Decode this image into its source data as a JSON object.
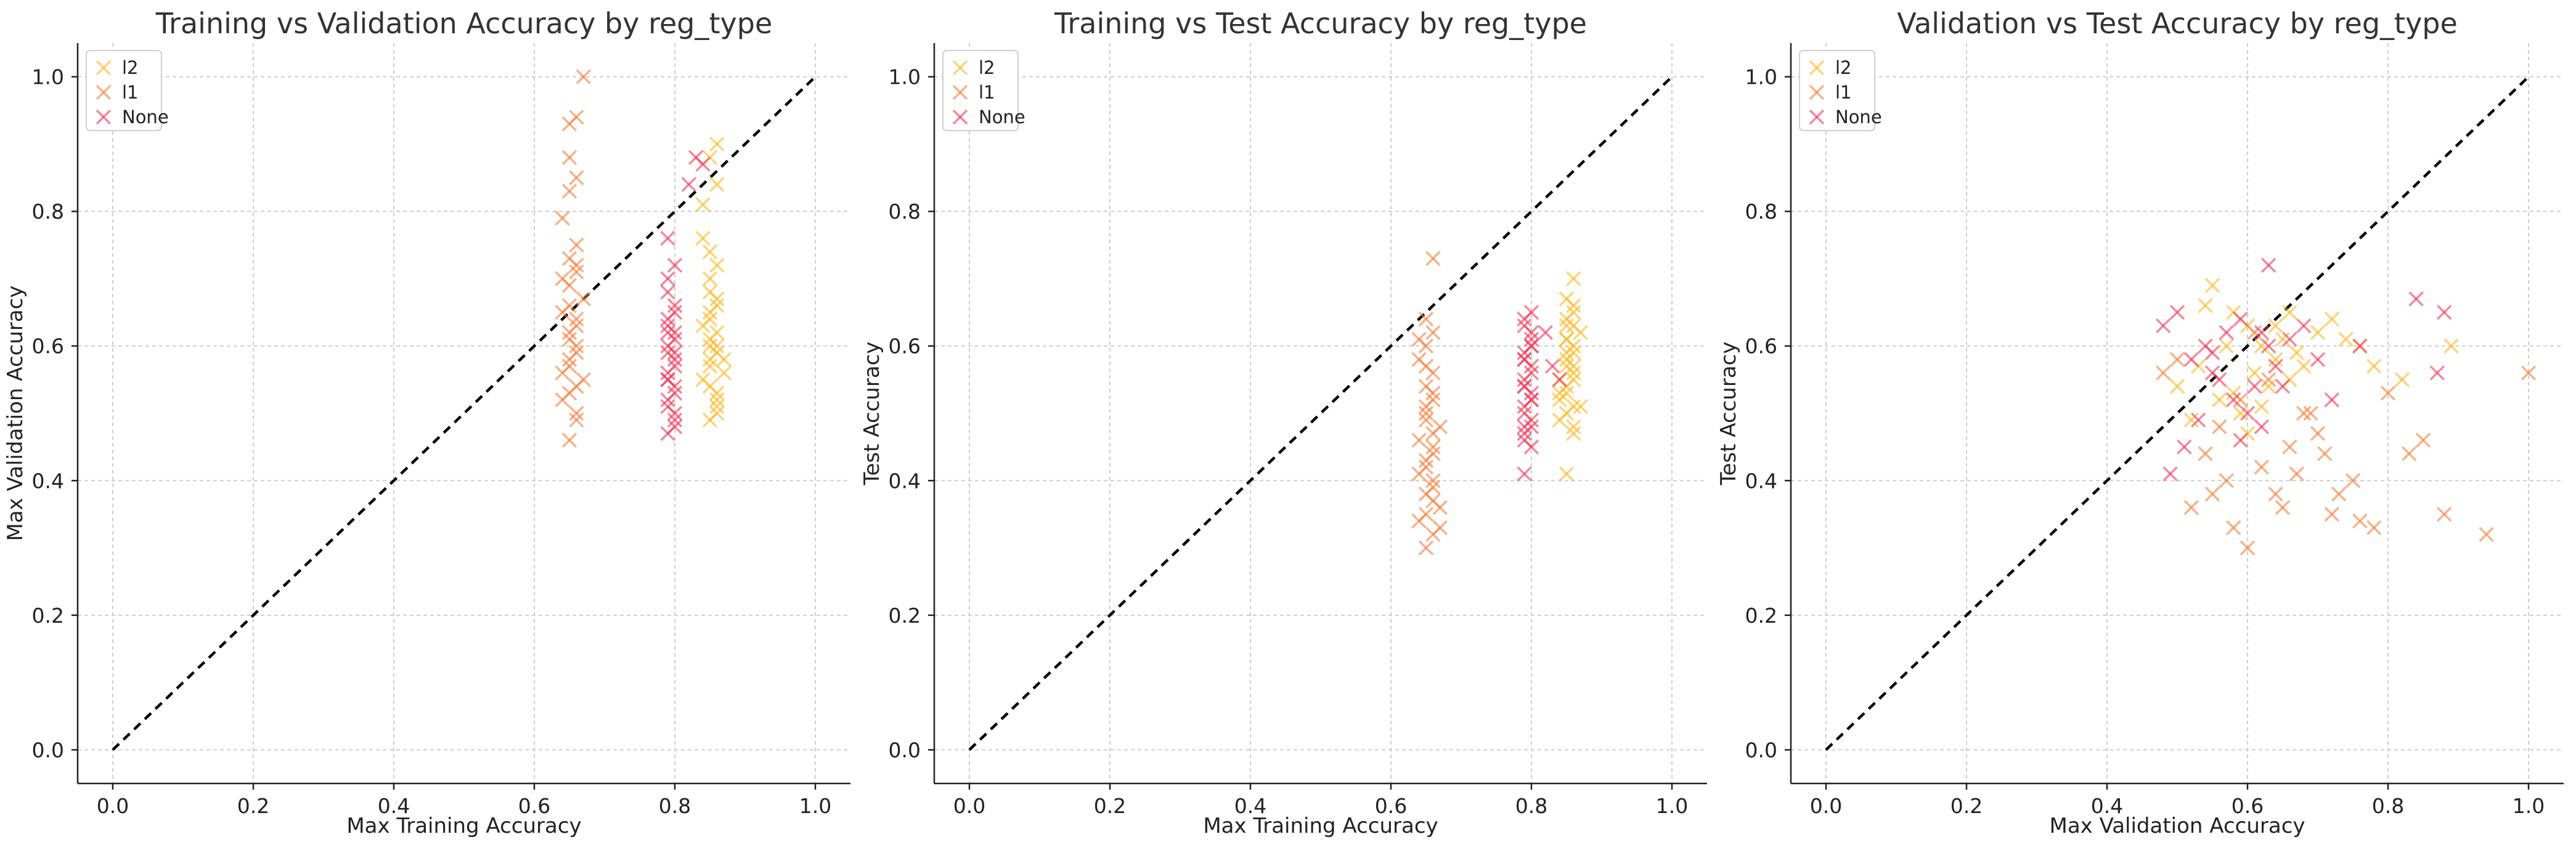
{
  "chart_data": [
    {
      "type": "scatter",
      "title": "Training vs Validation Accuracy by reg_type",
      "xlabel": "Max Training Accuracy",
      "ylabel": "Max Validation Accuracy",
      "xlim": [
        -0.05,
        1.05
      ],
      "ylim": [
        -0.05,
        1.05
      ],
      "ticks": [
        0.0,
        0.2,
        0.4,
        0.6,
        0.8,
        1.0
      ],
      "tick_labels": [
        "0.0",
        "0.2",
        "0.4",
        "0.6",
        "0.8",
        "1.0"
      ],
      "grid": true,
      "legend_position": "top-left",
      "reference_line": {
        "from": [
          0,
          0
        ],
        "to": [
          1,
          1
        ],
        "style": "dashed"
      },
      "series": [
        {
          "name": "l2",
          "color": "#FDB924",
          "x": [
            0.85,
            0.86,
            0.84,
            0.87,
            0.85,
            0.86,
            0.85,
            0.86,
            0.85,
            0.86,
            0.86,
            0.85,
            0.86,
            0.85,
            0.84,
            0.85,
            0.86,
            0.85,
            0.86,
            0.87,
            0.85,
            0.86,
            0.84,
            0.86,
            0.85,
            0.86,
            0.85,
            0.84,
            0.86,
            0.85
          ],
          "y": [
            0.49,
            0.52,
            0.55,
            0.58,
            0.6,
            0.62,
            0.64,
            0.66,
            0.68,
            0.5,
            0.53,
            0.57,
            0.59,
            0.61,
            0.63,
            0.65,
            0.67,
            0.7,
            0.72,
            0.56,
            0.88,
            0.9,
            0.76,
            0.84,
            0.54,
            0.51,
            0.74,
            0.81,
            0.6,
            0.58
          ]
        },
        {
          "name": "l1",
          "color": "#F4813F",
          "x": [
            0.65,
            0.66,
            0.64,
            0.67,
            0.65,
            0.66,
            0.65,
            0.66,
            0.64,
            0.67,
            0.65,
            0.66,
            0.65,
            0.66,
            0.64,
            0.65,
            0.66,
            0.65,
            0.66,
            0.67,
            0.65,
            0.66,
            0.64,
            0.66,
            0.65,
            0.66,
            0.65,
            0.64,
            0.66,
            0.65,
            0.66,
            0.65
          ],
          "y": [
            0.46,
            0.5,
            0.52,
            0.55,
            0.57,
            0.59,
            0.61,
            0.63,
            0.65,
            0.67,
            0.69,
            0.71,
            0.73,
            0.75,
            0.79,
            0.83,
            0.85,
            0.88,
            0.94,
            1.0,
            0.93,
            0.54,
            0.56,
            0.6,
            0.62,
            0.64,
            0.66,
            0.7,
            0.72,
            0.53,
            0.49,
            0.58
          ]
        },
        {
          "name": "None",
          "color": "#EE3A5B",
          "x": [
            0.79,
            0.8,
            0.79,
            0.8,
            0.79,
            0.8,
            0.79,
            0.8,
            0.79,
            0.8,
            0.79,
            0.8,
            0.79,
            0.8,
            0.79,
            0.8,
            0.79,
            0.8,
            0.83,
            0.84,
            0.82,
            0.79,
            0.8,
            0.79,
            0.8,
            0.79,
            0.8,
            0.79,
            0.8,
            0.79
          ],
          "y": [
            0.47,
            0.5,
            0.52,
            0.54,
            0.56,
            0.58,
            0.6,
            0.62,
            0.64,
            0.66,
            0.68,
            0.49,
            0.51,
            0.53,
            0.55,
            0.57,
            0.59,
            0.61,
            0.88,
            0.87,
            0.84,
            0.63,
            0.65,
            0.7,
            0.72,
            0.76,
            0.48,
            0.55,
            0.59,
            0.62
          ]
        }
      ]
    },
    {
      "type": "scatter",
      "title": "Training vs Test Accuracy by reg_type",
      "xlabel": "Max Training Accuracy",
      "ylabel": "Test Accuracy",
      "xlim": [
        -0.05,
        1.05
      ],
      "ylim": [
        -0.05,
        1.05
      ],
      "ticks": [
        0.0,
        0.2,
        0.4,
        0.6,
        0.8,
        1.0
      ],
      "tick_labels": [
        "0.0",
        "0.2",
        "0.4",
        "0.6",
        "0.8",
        "1.0"
      ],
      "grid": true,
      "legend_position": "top-left",
      "reference_line": {
        "from": [
          0,
          0
        ],
        "to": [
          1,
          1
        ],
        "style": "dashed"
      },
      "series": [
        {
          "name": "l2",
          "color": "#FDB924",
          "x": [
            0.85,
            0.86,
            0.84,
            0.87,
            0.85,
            0.86,
            0.85,
            0.86,
            0.85,
            0.86,
            0.86,
            0.85,
            0.86,
            0.85,
            0.84,
            0.85,
            0.86,
            0.85,
            0.86,
            0.87,
            0.85,
            0.86,
            0.84,
            0.86,
            0.85,
            0.86,
            0.85,
            0.84,
            0.86,
            0.85
          ],
          "y": [
            0.41,
            0.47,
            0.49,
            0.51,
            0.53,
            0.55,
            0.57,
            0.59,
            0.61,
            0.63,
            0.65,
            0.67,
            0.7,
            0.5,
            0.52,
            0.54,
            0.56,
            0.58,
            0.6,
            0.62,
            0.64,
            0.48,
            0.53,
            0.57,
            0.61,
            0.66,
            0.59,
            0.55,
            0.51,
            0.63
          ]
        },
        {
          "name": "l1",
          "color": "#F4813F",
          "x": [
            0.65,
            0.66,
            0.64,
            0.67,
            0.65,
            0.66,
            0.65,
            0.66,
            0.64,
            0.67,
            0.65,
            0.66,
            0.65,
            0.66,
            0.64,
            0.65,
            0.66,
            0.65,
            0.66,
            0.67,
            0.65,
            0.66,
            0.64,
            0.66,
            0.65,
            0.66,
            0.65,
            0.64,
            0.66,
            0.65,
            0.66,
            0.65
          ],
          "y": [
            0.3,
            0.32,
            0.34,
            0.36,
            0.38,
            0.4,
            0.42,
            0.44,
            0.46,
            0.48,
            0.5,
            0.52,
            0.54,
            0.56,
            0.58,
            0.6,
            0.62,
            0.64,
            0.73,
            0.33,
            0.35,
            0.37,
            0.41,
            0.45,
            0.49,
            0.53,
            0.57,
            0.61,
            0.39,
            0.43,
            0.47,
            0.51
          ]
        },
        {
          "name": "None",
          "color": "#EE3A5B",
          "x": [
            0.79,
            0.8,
            0.79,
            0.8,
            0.79,
            0.8,
            0.79,
            0.8,
            0.79,
            0.8,
            0.79,
            0.8,
            0.79,
            0.8,
            0.79,
            0.8,
            0.79,
            0.8,
            0.79,
            0.8,
            0.83,
            0.84,
            0.82,
            0.79,
            0.8,
            0.79,
            0.8,
            0.79,
            0.8,
            0.79
          ],
          "y": [
            0.41,
            0.45,
            0.47,
            0.49,
            0.51,
            0.53,
            0.55,
            0.57,
            0.59,
            0.61,
            0.63,
            0.65,
            0.46,
            0.48,
            0.5,
            0.52,
            0.54,
            0.56,
            0.58,
            0.6,
            0.57,
            0.55,
            0.62,
            0.64,
            0.62,
            0.58,
            0.52,
            0.48,
            0.6,
            0.54
          ]
        }
      ]
    },
    {
      "type": "scatter",
      "title": "Validation vs Test Accuracy by reg_type",
      "xlabel": "Max Validation Accuracy",
      "ylabel": "Test Accuracy",
      "xlim": [
        -0.05,
        1.05
      ],
      "ylim": [
        -0.05,
        1.05
      ],
      "ticks": [
        0.0,
        0.2,
        0.4,
        0.6,
        0.8,
        1.0
      ],
      "tick_labels": [
        "0.0",
        "0.2",
        "0.4",
        "0.6",
        "0.8",
        "1.0"
      ],
      "grid": true,
      "legend_position": "top-left",
      "reference_line": {
        "from": [
          0,
          0
        ],
        "to": [
          1,
          1
        ],
        "style": "dashed"
      },
      "series": [
        {
          "name": "l2",
          "color": "#FDB924",
          "x": [
            0.55,
            0.58,
            0.6,
            0.62,
            0.64,
            0.66,
            0.68,
            0.7,
            0.72,
            0.56,
            0.59,
            0.61,
            0.63,
            0.65,
            0.67,
            0.5,
            0.53,
            0.57,
            0.74,
            0.76,
            0.52,
            0.54,
            0.6,
            0.62,
            0.66,
            0.89,
            0.82,
            0.78,
            0.64,
            0.58
          ],
          "y": [
            0.69,
            0.65,
            0.63,
            0.6,
            0.58,
            0.55,
            0.57,
            0.62,
            0.64,
            0.52,
            0.5,
            0.56,
            0.54,
            0.61,
            0.59,
            0.54,
            0.57,
            0.6,
            0.61,
            0.6,
            0.49,
            0.66,
            0.47,
            0.51,
            0.65,
            0.6,
            0.55,
            0.57,
            0.63,
            0.53
          ]
        },
        {
          "name": "l1",
          "color": "#F4813F",
          "x": [
            0.48,
            0.52,
            0.55,
            0.58,
            0.6,
            0.62,
            0.64,
            0.66,
            0.68,
            0.7,
            0.72,
            0.75,
            0.78,
            0.8,
            0.83,
            0.85,
            0.88,
            0.94,
            1.0,
            0.56,
            0.59,
            0.63,
            0.65,
            0.67,
            0.69,
            0.71,
            0.73,
            0.76,
            0.54,
            0.5,
            0.61,
            0.57
          ],
          "y": [
            0.56,
            0.36,
            0.38,
            0.33,
            0.3,
            0.42,
            0.38,
            0.45,
            0.5,
            0.47,
            0.35,
            0.4,
            0.33,
            0.53,
            0.44,
            0.46,
            0.35,
            0.32,
            0.56,
            0.48,
            0.52,
            0.55,
            0.36,
            0.41,
            0.5,
            0.44,
            0.38,
            0.34,
            0.44,
            0.58,
            0.62,
            0.4
          ]
        },
        {
          "name": "None",
          "color": "#EE3A5B",
          "x": [
            0.48,
            0.5,
            0.52,
            0.54,
            0.56,
            0.58,
            0.6,
            0.62,
            0.64,
            0.66,
            0.68,
            0.51,
            0.53,
            0.55,
            0.57,
            0.59,
            0.61,
            0.63,
            0.88,
            0.87,
            0.84,
            0.63,
            0.65,
            0.7,
            0.72,
            0.76,
            0.49,
            0.55,
            0.59,
            0.62
          ],
          "y": [
            0.63,
            0.65,
            0.58,
            0.6,
            0.55,
            0.52,
            0.5,
            0.48,
            0.57,
            0.61,
            0.63,
            0.45,
            0.49,
            0.56,
            0.62,
            0.46,
            0.54,
            0.6,
            0.65,
            0.56,
            0.67,
            0.72,
            0.54,
            0.58,
            0.52,
            0.6,
            0.41,
            0.59,
            0.64,
            0.62
          ]
        }
      ]
    }
  ]
}
